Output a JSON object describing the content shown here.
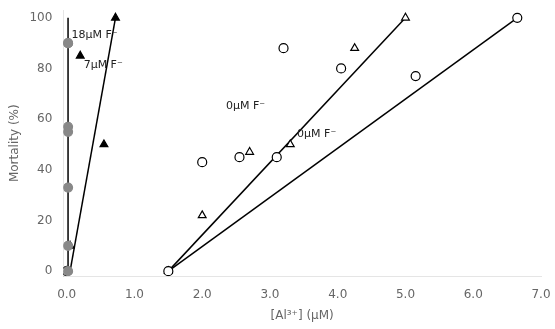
{
  "chart_data": {
    "type": "scatter",
    "xlabel": "[Al³⁺] (μM)",
    "ylabel": "Mortality (%)",
    "xlim": [
      -0.05,
      7.0
    ],
    "ylim": [
      -2,
      103
    ],
    "xticks": [
      {
        "value": 0.0,
        "label": "0.0"
      },
      {
        "value": 1.0,
        "label": "1.0"
      },
      {
        "value": 2.0,
        "label": "2.0"
      },
      {
        "value": 3.0,
        "label": "3.0"
      },
      {
        "value": 4.0,
        "label": "4.0"
      },
      {
        "value": 5.0,
        "label": "5.0"
      },
      {
        "value": 6.0,
        "label": "6.0"
      },
      {
        "value": 7.0,
        "label": "7.0"
      }
    ],
    "yticks": [
      0,
      20,
      40,
      60,
      80,
      100
    ],
    "grid": false,
    "series": [
      {
        "type": "line",
        "color": "#000000",
        "x": [
          0.02,
          0.02
        ],
        "values": [
          0,
          100
        ]
      },
      {
        "type": "scatter",
        "marker": "circle",
        "color": "#888888",
        "x": [
          0.02,
          0.02,
          0.02,
          0.02,
          0.02,
          0.02,
          0.02
        ],
        "values": [
          0,
          10,
          33,
          55,
          57,
          90,
          90
        ]
      },
      {
        "type": "line",
        "color": "#000000",
        "x": [
          0.05,
          0.72
        ],
        "values": [
          0,
          100
        ]
      },
      {
        "type": "scatter",
        "marker": "triangle",
        "color": "#000000",
        "x": [
          0.05,
          0.2,
          0.55,
          0.72
        ],
        "values": [
          10,
          85,
          50,
          100
        ]
      },
      {
        "type": "line",
        "color": "#000000",
        "x": [
          1.5,
          5.0
        ],
        "values": [
          0,
          100
        ]
      },
      {
        "type": "line",
        "color": "#000000",
        "x": [
          1.5,
          6.65
        ],
        "values": [
          0,
          100
        ]
      },
      {
        "type": "scatter",
        "marker": "open_circle",
        "color": "#000000",
        "x": [
          0.0,
          1.5,
          2.0,
          2.55,
          3.1,
          3.2,
          4.05,
          5.15,
          6.65
        ],
        "values": [
          0,
          0,
          43,
          45,
          45,
          88,
          80,
          77,
          100
        ]
      },
      {
        "type": "scatter",
        "marker": "open_triangle",
        "color": "#000000",
        "x": [
          0.0,
          1.5,
          2.0,
          2.7,
          3.3,
          4.25,
          5.0
        ],
        "values": [
          0,
          0,
          22,
          47,
          50,
          88,
          100
        ]
      }
    ],
    "annotations": [
      {
        "text": "18μM F⁻",
        "x": 0.07,
        "y": 91
      },
      {
        "text": "7μM F⁻",
        "x": 0.25,
        "y": 79
      },
      {
        "text": "0μM F⁻",
        "x": 2.35,
        "y": 63
      },
      {
        "text": "0μM F⁻",
        "x": 3.4,
        "y": 52
      }
    ]
  }
}
